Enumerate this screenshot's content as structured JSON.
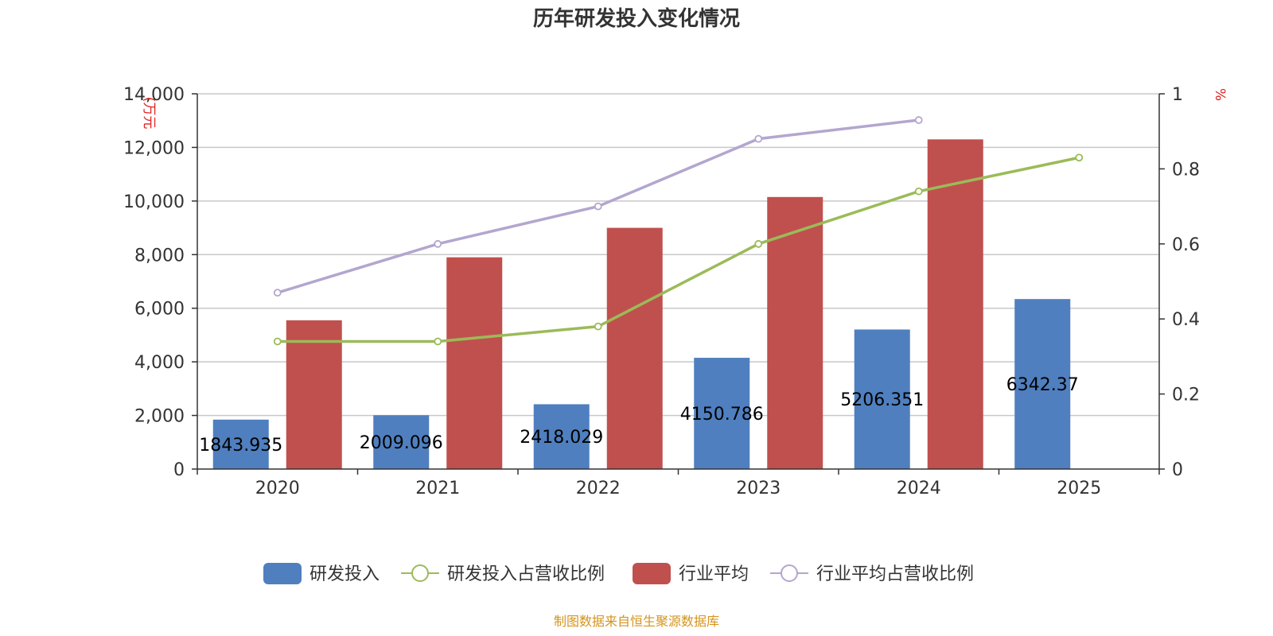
{
  "chart_data": {
    "type": "bar",
    "title": "历年研发投入变化情况",
    "categories": [
      "2020",
      "2021",
      "2022",
      "2023",
      "2024",
      "2025"
    ],
    "y_left": {
      "unit": "(万元",
      "ticks": [
        "0",
        "2,000",
        "4,000",
        "6,000",
        "8,000",
        "10,000",
        "12,000",
        "14,000"
      ],
      "range": [
        0,
        14000
      ]
    },
    "y_right": {
      "unit": "%",
      "ticks": [
        "0",
        "0.2",
        "0.4",
        "0.6",
        "0.8",
        "1"
      ],
      "range": [
        0,
        1
      ]
    },
    "series": [
      {
        "name": "研发投入",
        "type": "bar",
        "axis": "left",
        "color": "#4f7fbf",
        "values": [
          1843.935,
          2009.096,
          2418.029,
          4150.786,
          5206.351,
          6342.37
        ],
        "labels": [
          "1843.935",
          "2009.096",
          "2418.029",
          "4150.786",
          "5206.351",
          "6342.37"
        ]
      },
      {
        "name": "研发投入占营收比例",
        "type": "line",
        "axis": "right",
        "color": "#9bbb59",
        "values": [
          0.34,
          0.34,
          0.38,
          0.6,
          0.74,
          0.83
        ]
      },
      {
        "name": "行业平均",
        "type": "bar",
        "axis": "left",
        "color": "#c0504d",
        "values": [
          5550,
          7900,
          9000,
          10150,
          12300,
          null
        ]
      },
      {
        "name": "行业平均占营收比例",
        "type": "line",
        "axis": "right",
        "color": "#b3a6cf",
        "values": [
          0.47,
          0.6,
          0.7,
          0.88,
          0.93,
          null
        ]
      }
    ],
    "legend_position": "bottom",
    "source": "制图数据来自恒生聚源数据库"
  }
}
